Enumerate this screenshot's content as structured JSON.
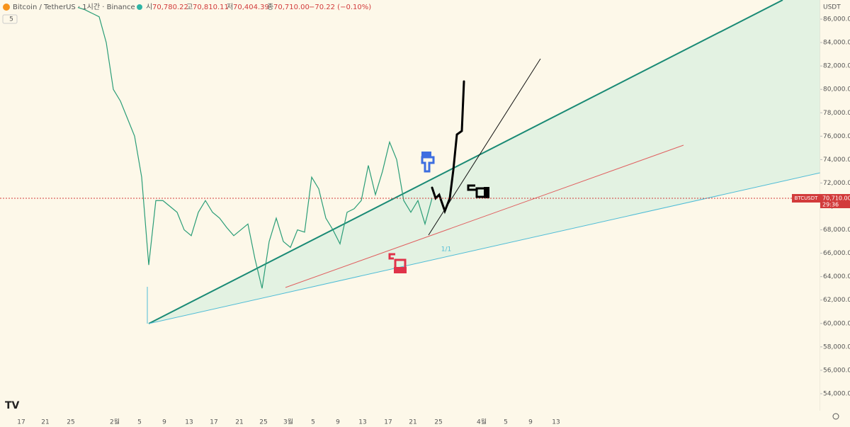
{
  "header": {
    "symbol": "Bitcoin / TetherUS · 1시간 · Binance",
    "open_label": "시",
    "open": "70,780.22",
    "high_label": "고",
    "high": "70,810.11",
    "low_label": "저",
    "low": "70,404.39",
    "close_label": "종",
    "close": "70,710.00",
    "change": "−70.22 (−0.10%)",
    "interval": "5"
  },
  "price_axis": {
    "currency": "USDT",
    "ylim": [
      53000,
      87000
    ],
    "yticks": [
      {
        "value": 54000,
        "label": "54,000.00"
      },
      {
        "value": 56000,
        "label": "56,000.00"
      },
      {
        "value": 58000,
        "label": "58,000.00"
      },
      {
        "value": 60000,
        "label": "60,000.00"
      },
      {
        "value": 62000,
        "label": "62,000.00"
      },
      {
        "value": 64000,
        "label": "64,000.00"
      },
      {
        "value": 66000,
        "label": "66,000.00"
      },
      {
        "value": 68000,
        "label": "68,000.00"
      },
      {
        "value": 70000,
        "label": "70,000.00"
      },
      {
        "value": 72000,
        "label": "72,000.00"
      },
      {
        "value": 74000,
        "label": "74,000.00"
      },
      {
        "value": 76000,
        "label": "76,000.00"
      },
      {
        "value": 78000,
        "label": "78,000.00"
      },
      {
        "value": 80000,
        "label": "80,000.00"
      },
      {
        "value": 82000,
        "label": "82,000.00"
      },
      {
        "value": 84000,
        "label": "84,000.00"
      },
      {
        "value": 86000,
        "label": "86,000.00"
      }
    ]
  },
  "time_axis": {
    "labels": [
      "17",
      "21",
      "25",
      "2월",
      "5",
      "9",
      "13",
      "17",
      "21",
      "25",
      "3월",
      "5",
      "9",
      "13",
      "17",
      "21",
      "25",
      "4월",
      "5",
      "9",
      "13"
    ]
  },
  "last_price": {
    "symbol": "BTCUSDT",
    "value": 70710,
    "label": "70,710.00",
    "countdown": "29:36"
  },
  "annotation": "1/1",
  "price_path": [
    87000,
    86800,
    86500,
    86200,
    84000,
    80000,
    79000,
    77500,
    76000,
    72500,
    65000,
    70500,
    70500,
    70000,
    69500,
    68000,
    67500,
    69500,
    70500,
    69500,
    69000,
    68200,
    67500,
    68000,
    68500,
    65500,
    63000,
    67000,
    69000,
    67000,
    66500,
    68000,
    67800,
    72500,
    71500,
    69000,
    68000,
    66800,
    69500,
    69800,
    70500,
    73500,
    71000,
    73000,
    75500,
    74000,
    70500,
    69500,
    70500,
    68500,
    70710
  ]
}
